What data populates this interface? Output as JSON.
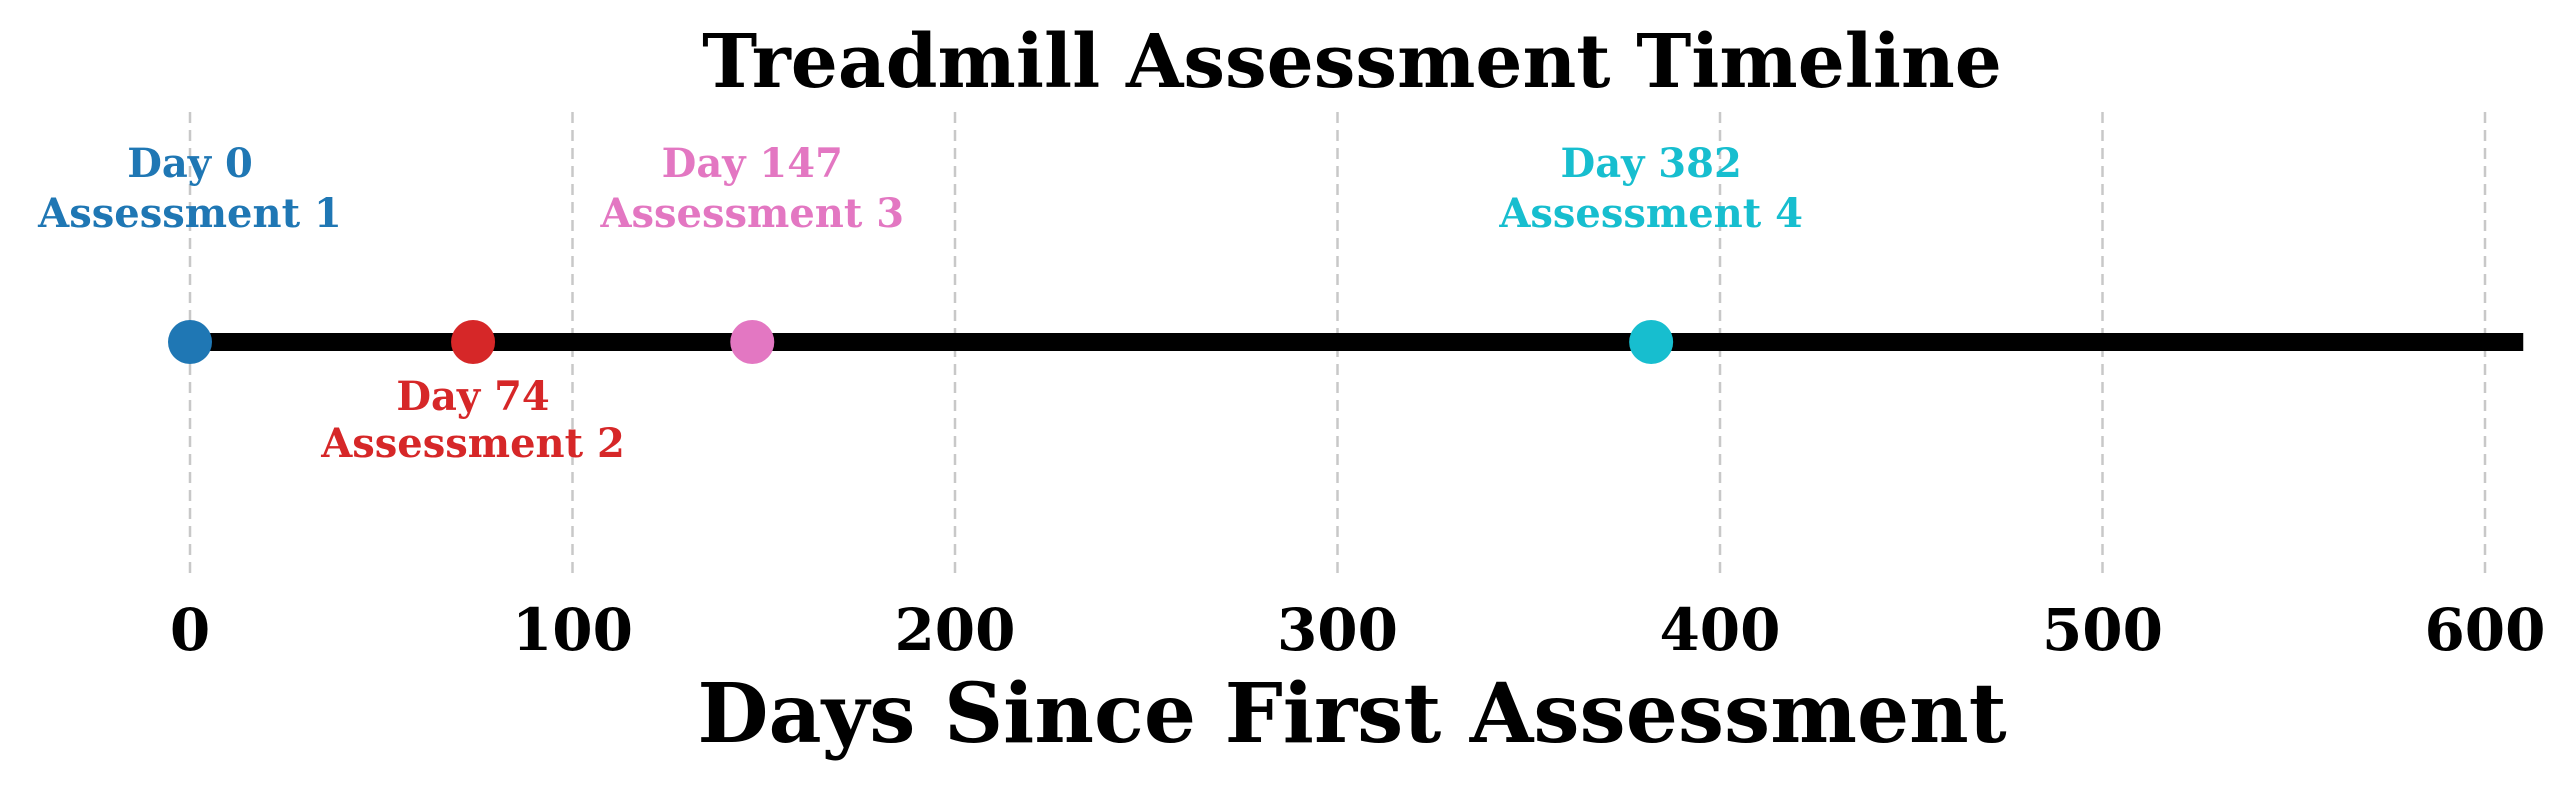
{
  "chart_data": {
    "type": "scatter",
    "title": "Treadmill Assessment Timeline",
    "xlabel": "Days Since First Assessment",
    "ylabel": "",
    "xlim": [
      0,
      610
    ],
    "xticks": [
      0,
      100,
      200,
      300,
      400,
      500,
      600
    ],
    "grid": "x-dashed",
    "timeline_color": "#000000",
    "grid_color": "#c8c8c8",
    "points": [
      {
        "x": 0,
        "day_label": "Day 0",
        "name": "Assessment 1",
        "label_position": "above",
        "color": "#1f77b4"
      },
      {
        "x": 74,
        "day_label": "Day 74",
        "name": "Assessment 2",
        "label_position": "below",
        "color": "#d62728"
      },
      {
        "x": 147,
        "day_label": "Day 147",
        "name": "Assessment 3",
        "label_position": "above",
        "color": "#e377c2"
      },
      {
        "x": 382,
        "day_label": "Day 382",
        "name": "Assessment 4",
        "label_position": "above",
        "color": "#17becf"
      }
    ]
  }
}
